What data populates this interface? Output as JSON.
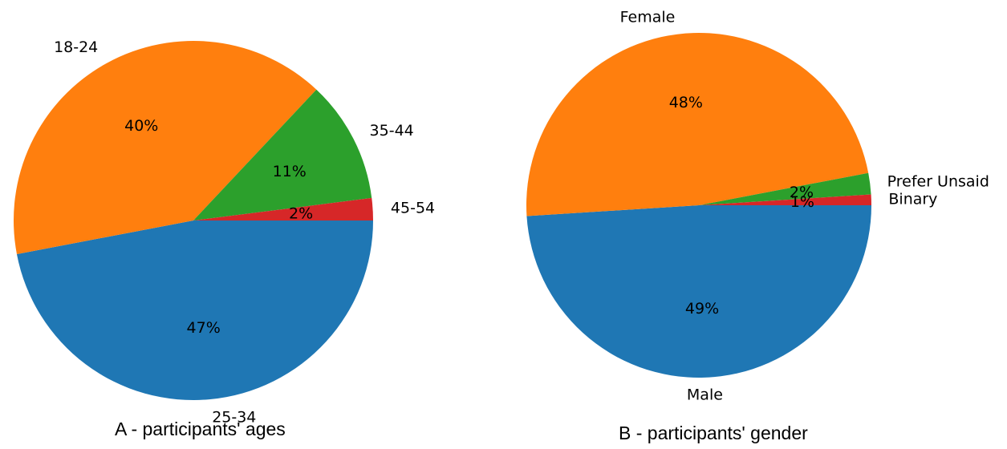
{
  "chart_data": [
    {
      "type": "pie",
      "title": "A - participants' ages",
      "start_angle_deg": 0,
      "direction": "clockwise",
      "slices": [
        {
          "label": "25-34",
          "value": 47,
          "pct_label": "47%",
          "color": "#1f77b4"
        },
        {
          "label": "18-24",
          "value": 40,
          "pct_label": "40%",
          "color": "#ff7f0e"
        },
        {
          "label": "35-44",
          "value": 11,
          "pct_label": "11%",
          "color": "#2ca02c"
        },
        {
          "label": "45-54",
          "value": 2,
          "pct_label": "2%",
          "color": "#d62728"
        }
      ]
    },
    {
      "type": "pie",
      "title": "B - participants' gender",
      "start_angle_deg": 0,
      "direction": "clockwise",
      "slices": [
        {
          "label": "Male",
          "value": 49,
          "pct_label": "49%",
          "color": "#1f77b4"
        },
        {
          "label": "Female",
          "value": 48,
          "pct_label": "48%",
          "color": "#ff7f0e"
        },
        {
          "label": "Prefer Unsaid",
          "value": 2,
          "pct_label": "2%",
          "color": "#2ca02c"
        },
        {
          "label": "Binary",
          "value": 1,
          "pct_label": "1%",
          "color": "#d62728"
        }
      ]
    }
  ]
}
